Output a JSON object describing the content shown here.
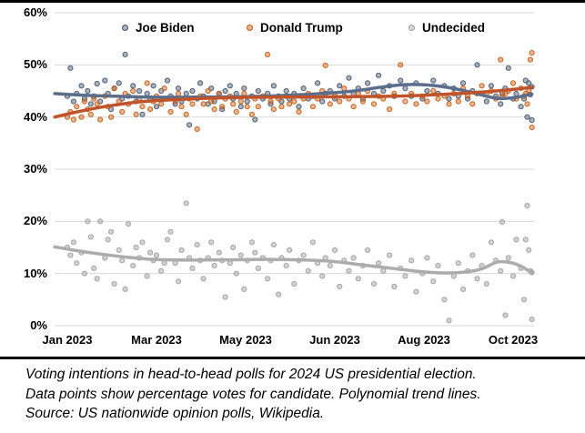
{
  "frame": {
    "background": "#ffffff",
    "border_color": "#000000"
  },
  "caption": {
    "lines": [
      "Voting intentions in head-to-head polls for 2024 US presidential election.",
      "Data points show percentage votes for candidate. Polynomial trend lines.",
      "Source: US nationwide opinion polls, Wikipedia."
    ]
  },
  "chart_data": {
    "type": "scatter",
    "title": "",
    "legend_position": "top",
    "grid": true,
    "grid_color": "#D9D9D9",
    "x_axis": {
      "tick_labels": [
        "Jan 2023",
        "Mar 2023",
        "May 2023",
        "Jun 2023",
        "Aug 2023",
        "Oct 2023"
      ],
      "tick_days": [
        0,
        57,
        114,
        171,
        228,
        285
      ],
      "range_days": [
        -8,
        297
      ]
    },
    "y_axis": {
      "tick_labels": [
        "0%",
        "10%",
        "20%",
        "30%",
        "40%",
        "50%",
        "60%"
      ],
      "tick_values": [
        0,
        10,
        20,
        30,
        40,
        50,
        60
      ],
      "range": [
        0,
        60
      ],
      "unit": "%"
    },
    "series": [
      {
        "id": "joe_biden",
        "label": "Joe Biden",
        "line_color": "#5A6E8C",
        "marker_stroke": "#44546A",
        "marker_fill": "#44546A",
        "marker_fill_opacity": 0.45,
        "trend": [
          [
            -8,
            44.5
          ],
          [
            10,
            44.2
          ],
          [
            30,
            44.0
          ],
          [
            60,
            43.8
          ],
          [
            90,
            43.85
          ],
          [
            120,
            43.95
          ],
          [
            150,
            44.3
          ],
          [
            180,
            44.9
          ],
          [
            200,
            45.7
          ],
          [
            215,
            46.2
          ],
          [
            230,
            46.15
          ],
          [
            245,
            45.6
          ],
          [
            260,
            44.6
          ],
          [
            274,
            43.6
          ],
          [
            285,
            43.7
          ],
          [
            297,
            44.4
          ]
        ]
      },
      {
        "id": "donald_trump",
        "label": "Donald Trump",
        "line_color": "#C0532A",
        "marker_stroke": "#C55A11",
        "marker_fill": "#C55A11",
        "marker_fill_opacity": 0.45,
        "trend": [
          [
            -8,
            40.0
          ],
          [
            5,
            40.9
          ],
          [
            20,
            41.8
          ],
          [
            40,
            42.7
          ],
          [
            60,
            43.2
          ],
          [
            90,
            43.6
          ],
          [
            120,
            43.8
          ],
          [
            150,
            43.85
          ],
          [
            180,
            43.9
          ],
          [
            210,
            44.0
          ],
          [
            230,
            44.2
          ],
          [
            250,
            44.5
          ],
          [
            270,
            44.9
          ],
          [
            285,
            45.3
          ],
          [
            297,
            45.7
          ]
        ]
      },
      {
        "id": "undecided",
        "label": "Undecided",
        "line_color": "#ACACAC",
        "marker_stroke": "#9E9E9E",
        "marker_fill": "#A6A6A6",
        "marker_fill_opacity": 0.5,
        "trend": [
          [
            -8,
            15.1
          ],
          [
            10,
            14.2
          ],
          [
            30,
            13.4
          ],
          [
            50,
            12.8
          ],
          [
            70,
            12.6
          ],
          [
            90,
            12.6
          ],
          [
            110,
            12.65
          ],
          [
            130,
            12.7
          ],
          [
            150,
            12.6
          ],
          [
            170,
            12.3
          ],
          [
            190,
            11.6
          ],
          [
            210,
            10.9
          ],
          [
            228,
            10.3
          ],
          [
            242,
            10.1
          ],
          [
            255,
            10.3
          ],
          [
            265,
            10.9
          ],
          [
            275,
            12.2
          ],
          [
            283,
            12.1
          ],
          [
            290,
            11.4
          ],
          [
            297,
            10.1
          ]
        ]
      }
    ],
    "polls": {
      "columns": [
        "day",
        "joe_biden",
        "donald_trump",
        "undecided"
      ],
      "rows": [
        [
          0,
          44,
          40,
          15
        ],
        [
          2,
          49.4,
          41,
          13.5
        ],
        [
          4,
          43,
          39.5,
          16
        ],
        [
          6,
          44.5,
          42,
          12
        ],
        [
          9,
          46,
          40,
          14
        ],
        [
          11,
          43.5,
          43,
          10
        ],
        [
          13,
          45,
          41.5,
          20
        ],
        [
          15,
          42.5,
          40.5,
          17
        ],
        [
          17,
          44,
          43.5,
          11
        ],
        [
          19,
          46.4,
          42.5,
          9
        ],
        [
          21,
          43,
          39.5,
          20
        ],
        [
          24,
          47,
          44,
          13
        ],
        [
          26,
          44.5,
          42,
          16.5
        ],
        [
          28,
          41.5,
          40,
          18
        ],
        [
          30,
          45.5,
          45.5,
          8
        ],
        [
          33,
          46.5,
          43,
          14.5
        ],
        [
          35,
          43.5,
          41,
          12.5
        ],
        [
          37,
          52,
          44.5,
          7
        ],
        [
          39,
          44,
          42.5,
          19.5
        ],
        [
          42,
          46,
          45,
          11.5
        ],
        [
          44,
          43,
          40.5,
          15
        ],
        [
          46,
          45,
          43.5,
          13
        ],
        [
          48,
          40.5,
          42,
          16
        ],
        [
          51,
          44.5,
          46.5,
          9.5
        ],
        [
          53,
          43.5,
          41.5,
          14
        ],
        [
          55,
          46,
          43,
          12.5
        ],
        [
          57,
          42,
          44,
          13.5
        ],
        [
          60,
          45,
          42.5,
          10.5
        ],
        [
          62,
          43.5,
          45.5,
          12
        ],
        [
          64,
          47,
          43.5,
          16.5
        ],
        [
          66,
          44,
          41,
          18
        ],
        [
          69,
          42.5,
          43,
          12
        ],
        [
          71,
          45.5,
          44.5,
          8.5
        ],
        [
          73,
          43,
          42,
          14.5
        ],
        [
          76,
          44.5,
          40.5,
          23.5
        ],
        [
          78,
          38.5,
          43.5,
          13
        ],
        [
          80,
          45,
          42.5,
          11
        ],
        [
          83,
          43.5,
          37.7,
          15.5
        ],
        [
          85,
          46.5,
          44,
          12.5
        ],
        [
          87,
          44,
          42.5,
          9
        ],
        [
          90,
          42.5,
          45,
          13
        ],
        [
          92,
          45.5,
          43,
          16
        ],
        [
          94,
          43,
          41.5,
          11.5
        ],
        [
          97,
          44.5,
          44.5,
          14
        ],
        [
          99,
          41.5,
          42,
          12.5
        ],
        [
          101,
          45,
          43.5,
          5.5
        ],
        [
          104,
          46,
          44,
          12
        ],
        [
          106,
          43.5,
          42.5,
          15
        ],
        [
          108,
          44.5,
          41,
          10
        ],
        [
          111,
          42,
          43,
          13.5
        ],
        [
          113,
          45.5,
          44.5,
          7
        ],
        [
          115,
          43,
          42,
          12.5
        ],
        [
          118,
          44,
          40.5,
          16
        ],
        [
          120,
          39.5,
          43.5,
          14
        ],
        [
          122,
          45,
          42,
          11
        ],
        [
          125,
          43.5,
          44,
          13
        ],
        [
          128,
          44.5,
          52,
          9
        ],
        [
          130,
          42.5,
          43,
          12.5
        ],
        [
          132,
          46,
          41.5,
          15.5
        ],
        [
          135,
          44,
          43.5,
          6
        ],
        [
          137,
          43,
          42,
          13
        ],
        [
          140,
          45,
          44,
          11.5
        ],
        [
          142,
          43.5,
          42.5,
          14.5
        ],
        [
          145,
          44.5,
          43,
          8
        ],
        [
          148,
          42,
          41,
          12.5
        ],
        [
          151,
          45.5,
          43.5,
          13.5
        ],
        [
          154,
          43.5,
          44.5,
          10.5
        ],
        [
          157,
          44,
          42,
          16
        ],
        [
          160,
          46.5,
          43.5,
          12
        ],
        [
          163,
          43,
          45,
          9.5
        ],
        [
          165,
          44.5,
          49.9,
          13
        ],
        [
          168,
          45,
          42.5,
          11.5
        ],
        [
          171,
          43.5,
          44,
          14.5
        ],
        [
          174,
          46,
          43,
          7.5
        ],
        [
          177,
          44,
          45.5,
          12.5
        ],
        [
          180,
          47.5,
          43.5,
          10.5
        ],
        [
          183,
          44.5,
          42,
          13
        ],
        [
          186,
          45.5,
          44.5,
          9
        ],
        [
          189,
          43.5,
          43,
          11.5
        ],
        [
          192,
          46.5,
          45,
          14.5
        ],
        [
          196,
          44.5,
          42.5,
          8
        ],
        [
          199,
          48,
          44,
          12
        ],
        [
          202,
          45,
          43.5,
          10.5
        ],
        [
          206,
          46,
          41.5,
          13.5
        ],
        [
          209,
          44,
          44.5,
          7.5
        ],
        [
          213,
          47,
          50,
          11
        ],
        [
          216,
          45.5,
          43,
          9.5
        ],
        [
          220,
          44,
          44.5,
          12.5
        ],
        [
          223,
          46.5,
          42.5,
          6.5
        ],
        [
          227,
          43.5,
          44,
          10
        ],
        [
          230,
          45,
          43,
          13
        ],
        [
          234,
          47,
          45,
          8.5
        ],
        [
          237,
          44.5,
          43.5,
          11.5
        ],
        [
          241,
          46,
          44,
          5
        ],
        [
          244,
          43.5,
          42.5,
          1
        ],
        [
          247,
          45.5,
          44.5,
          9.5
        ],
        [
          250,
          44,
          43,
          12
        ],
        [
          253,
          46.5,
          45.5,
          7
        ],
        [
          256,
          43.5,
          44,
          10.5
        ],
        [
          259,
          45,
          42.5,
          13.5
        ],
        [
          262,
          50,
          44.5,
          9
        ],
        [
          265,
          44.5,
          46,
          11.5
        ],
        [
          268,
          43,
          44.5,
          8
        ],
        [
          271,
          46,
          45,
          16
        ],
        [
          274,
          44,
          43.5,
          12.5
        ],
        [
          277,
          42.5,
          51,
          10.5
        ],
        [
          278,
          44.5,
          44,
          19.9
        ],
        [
          280,
          45.5,
          44.5,
          2
        ],
        [
          282,
          49.4,
          45,
          13
        ],
        [
          285,
          43.5,
          46.5,
          9.5
        ],
        [
          287,
          44.5,
          43.5,
          16.5
        ],
        [
          290,
          42,
          45.5,
          11
        ],
        [
          292,
          43.5,
          44,
          5
        ],
        [
          293,
          47,
          44.5,
          16.5
        ],
        [
          294,
          40,
          42.5,
          23
        ],
        [
          295,
          46.5,
          45,
          14.5
        ],
        [
          296,
          44.3,
          51,
          10.5
        ],
        [
          297,
          39.4,
          52.3,
          1.2
        ],
        [
          297,
          45.8,
          38,
          10.2
        ]
      ]
    }
  }
}
